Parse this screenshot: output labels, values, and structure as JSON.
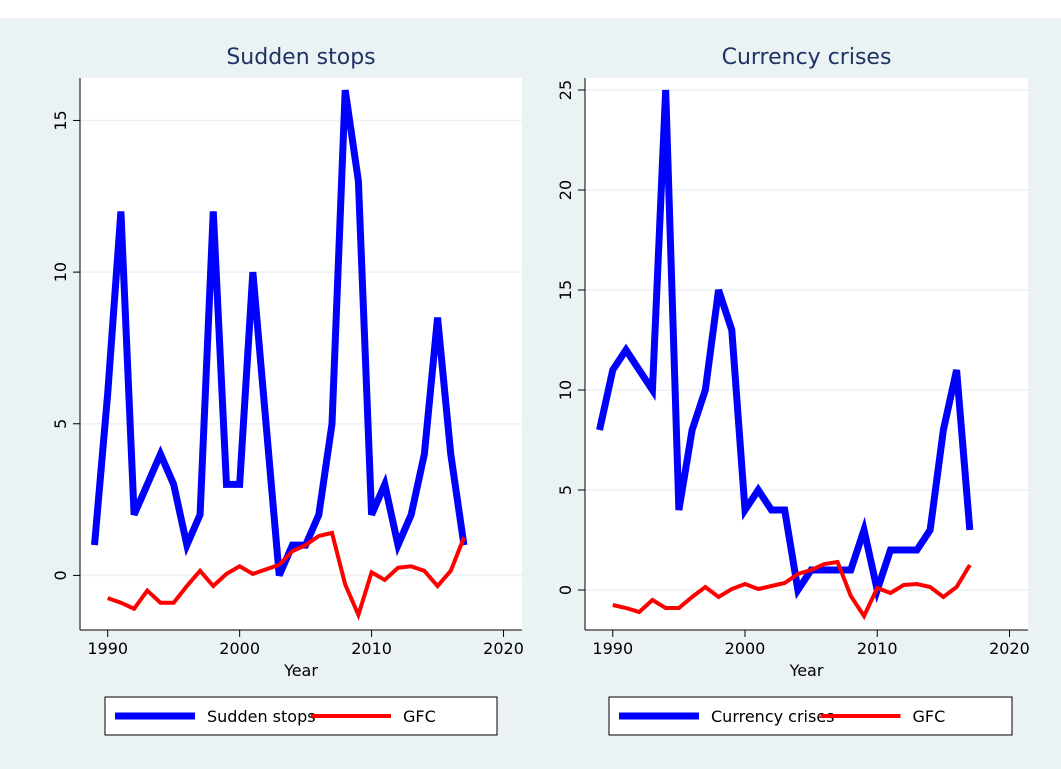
{
  "chart_data": [
    {
      "type": "line",
      "title": "Sudden stops",
      "xlabel": "Year",
      "x": [
        1989,
        1990,
        1991,
        1992,
        1993,
        1994,
        1995,
        1996,
        1997,
        1998,
        1999,
        2000,
        2001,
        2002,
        2003,
        2004,
        2005,
        2006,
        2007,
        2008,
        2009,
        2010,
        2011,
        2012,
        2013,
        2014,
        2015,
        2016,
        2017
      ],
      "series": [
        {
          "name": "Sudden stops",
          "color": "#0000ff",
          "values": [
            1,
            6,
            12,
            2,
            3,
            4,
            3,
            1,
            2,
            12,
            3,
            3,
            10,
            5,
            0,
            1,
            1,
            2,
            5,
            16,
            13,
            2,
            3,
            1,
            2,
            4,
            8.5,
            4,
            1
          ]
        },
        {
          "name": "GFC",
          "color": "#ff0000",
          "values": [
            null,
            -0.75,
            -0.9,
            -1.1,
            -0.5,
            -0.9,
            -0.9,
            -0.35,
            0.15,
            -0.35,
            0.05,
            0.3,
            0.05,
            0.2,
            0.35,
            0.8,
            1.0,
            1.3,
            1.4,
            -0.3,
            -1.3,
            0.1,
            -0.15,
            0.25,
            0.3,
            0.15,
            -0.35,
            0.15,
            1.25
          ]
        }
      ],
      "xlim": [
        1987.9,
        2021.4
      ],
      "xticks": [
        1990,
        2000,
        2010,
        2020
      ],
      "ylim": [
        -1.8,
        16.4
      ],
      "yticks": [
        0,
        5,
        10,
        15
      ],
      "grid": true,
      "legend": "bottom"
    },
    {
      "type": "line",
      "title": "Currency crises",
      "xlabel": "Year",
      "x": [
        1989,
        1990,
        1991,
        1992,
        1993,
        1994,
        1995,
        1996,
        1997,
        1998,
        1999,
        2000,
        2001,
        2002,
        2003,
        2004,
        2005,
        2006,
        2007,
        2008,
        2009,
        2010,
        2011,
        2012,
        2013,
        2014,
        2015,
        2016,
        2017
      ],
      "series": [
        {
          "name": "Currency crises",
          "color": "#0000ff",
          "values": [
            8,
            11,
            12,
            11,
            10,
            25,
            4,
            8,
            10,
            15,
            13,
            4,
            5,
            4,
            4,
            0,
            1,
            1,
            1,
            1,
            3,
            0,
            2,
            2,
            2,
            3,
            8,
            11,
            3
          ]
        },
        {
          "name": "GFC",
          "color": "#ff0000",
          "values": [
            null,
            -0.75,
            -0.9,
            -1.1,
            -0.5,
            -0.9,
            -0.9,
            -0.35,
            0.15,
            -0.35,
            0.05,
            0.3,
            0.05,
            0.2,
            0.35,
            0.8,
            1.0,
            1.3,
            1.4,
            -0.3,
            -1.3,
            0.1,
            -0.15,
            0.25,
            0.3,
            0.15,
            -0.35,
            0.15,
            1.25
          ]
        }
      ],
      "xlim": [
        1987.9,
        2021.4
      ],
      "xticks": [
        1990,
        2000,
        2010,
        2020
      ],
      "ylim": [
        -2,
        25.6
      ],
      "yticks": [
        0,
        5,
        10,
        15,
        20,
        25
      ],
      "grid": true,
      "legend": "bottom"
    }
  ]
}
